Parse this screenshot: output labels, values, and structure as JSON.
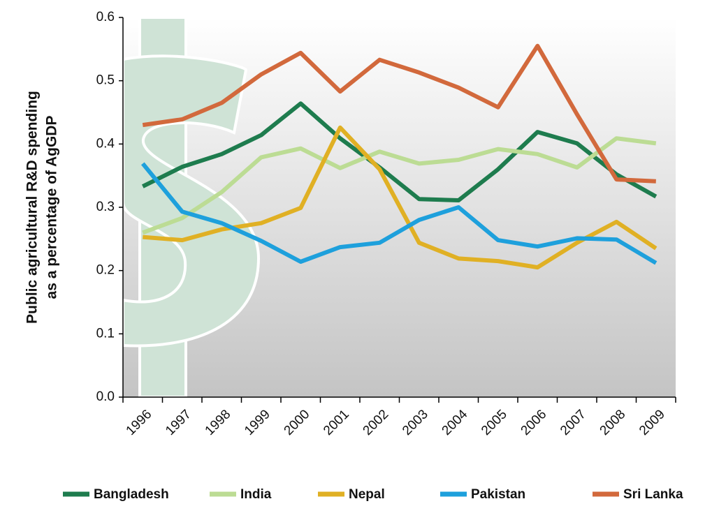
{
  "chart_data": {
    "type": "line",
    "y_label": [
      "Public agricultural R&D spending",
      "as a percentage of AgGDP"
    ],
    "categories": [
      "1996",
      "1997",
      "1998",
      "1999",
      "2000",
      "2001",
      "2002",
      "2003",
      "2004",
      "2005",
      "2006",
      "2007",
      "2008",
      "2009"
    ],
    "series": [
      {
        "name": "Bangladesh",
        "color": "#1e7c4e",
        "values": [
          0.333,
          0.364,
          0.384,
          0.414,
          0.464,
          0.409,
          0.363,
          0.313,
          0.311,
          0.36,
          0.419,
          0.401,
          0.352,
          0.317
        ]
      },
      {
        "name": "India",
        "color": "#bcdc94",
        "values": [
          0.26,
          0.283,
          0.324,
          0.379,
          0.393,
          0.362,
          0.388,
          0.369,
          0.375,
          0.392,
          0.384,
          0.363,
          0.409,
          0.401
        ]
      },
      {
        "name": "Nepal",
        "color": "#e0b024",
        "values": [
          0.253,
          0.248,
          0.265,
          0.275,
          0.299,
          0.426,
          0.36,
          0.244,
          0.219,
          0.215,
          0.205,
          0.244,
          0.277,
          0.235
        ]
      },
      {
        "name": "Pakistan",
        "color": "#1ea0dc",
        "values": [
          0.369,
          0.293,
          0.275,
          0.247,
          0.214,
          0.237,
          0.244,
          0.28,
          0.3,
          0.248,
          0.238,
          0.251,
          0.249,
          0.212
        ]
      },
      {
        "name": "Sri Lanka",
        "color": "#d2693c",
        "values": [
          0.43,
          0.439,
          0.465,
          0.51,
          0.544,
          0.483,
          0.533,
          0.513,
          0.489,
          0.458,
          0.555,
          0.447,
          0.344,
          0.341
        ]
      }
    ],
    "ylim": [
      0,
      0.6
    ],
    "yticks": [
      {
        "value": 0,
        "label": "0.0"
      },
      0.1,
      0.2,
      0.3,
      0.4,
      0.5,
      0.6
    ]
  }
}
